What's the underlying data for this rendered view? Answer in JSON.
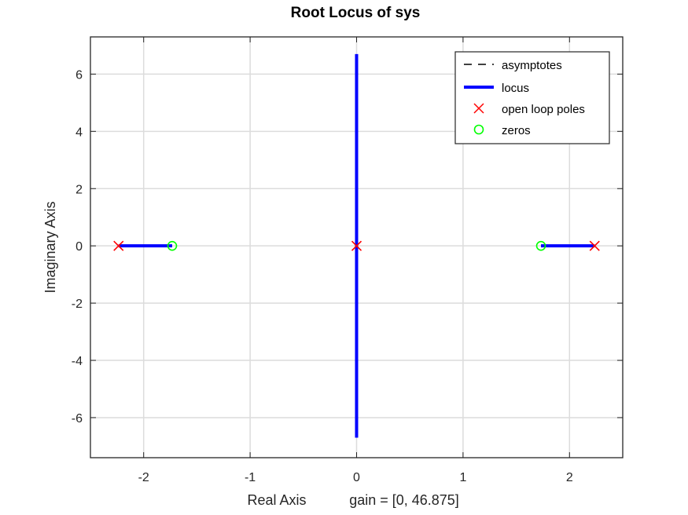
{
  "chart_data": {
    "type": "scatter",
    "title": "Root Locus of sys",
    "xlabel": "Real Axis",
    "xlabel_note": "gain = [0, 46.875]",
    "ylabel": "Imaginary Axis",
    "xlim": [
      -2.5,
      2.5
    ],
    "ylim": [
      -7.4,
      7.3
    ],
    "xticks": [
      -2,
      -1,
      0,
      1,
      2
    ],
    "xtick_labels": [
      "-2",
      "-1",
      "0",
      "1",
      "2"
    ],
    "yticks": [
      6,
      4,
      2,
      0,
      -2,
      -4,
      -6
    ],
    "ytick_labels": [
      "6",
      "4",
      "2",
      "0",
      "-2",
      "-4",
      "-6"
    ],
    "grid": true,
    "legend_position": "top-right",
    "legend": [
      {
        "label": "asymptotes",
        "style": "dashed-line",
        "color": "#000000"
      },
      {
        "label": "locus",
        "style": "thick-line",
        "color": "#0000ff"
      },
      {
        "label": "open loop poles",
        "style": "x-marker",
        "color": "#ff0000"
      },
      {
        "label": "zeros",
        "style": "o-marker",
        "color": "#00ff00"
      }
    ],
    "series": [
      {
        "name": "locus",
        "color": "#0000ff",
        "segments": [
          [
            [
              -2.236,
              0
            ],
            [
              -1.732,
              0
            ]
          ],
          [
            [
              1.732,
              0
            ],
            [
              2.236,
              0
            ]
          ],
          [
            [
              0,
              -6.7
            ],
            [
              0,
              6.7
            ]
          ]
        ]
      },
      {
        "name": "open loop poles",
        "color": "#ff0000",
        "points": [
          [
            -2.236,
            0
          ],
          [
            0,
            0
          ],
          [
            2.236,
            0
          ]
        ]
      },
      {
        "name": "zeros",
        "color": "#00ff00",
        "points": [
          [
            -1.732,
            0
          ],
          [
            1.732,
            0
          ]
        ]
      }
    ]
  }
}
